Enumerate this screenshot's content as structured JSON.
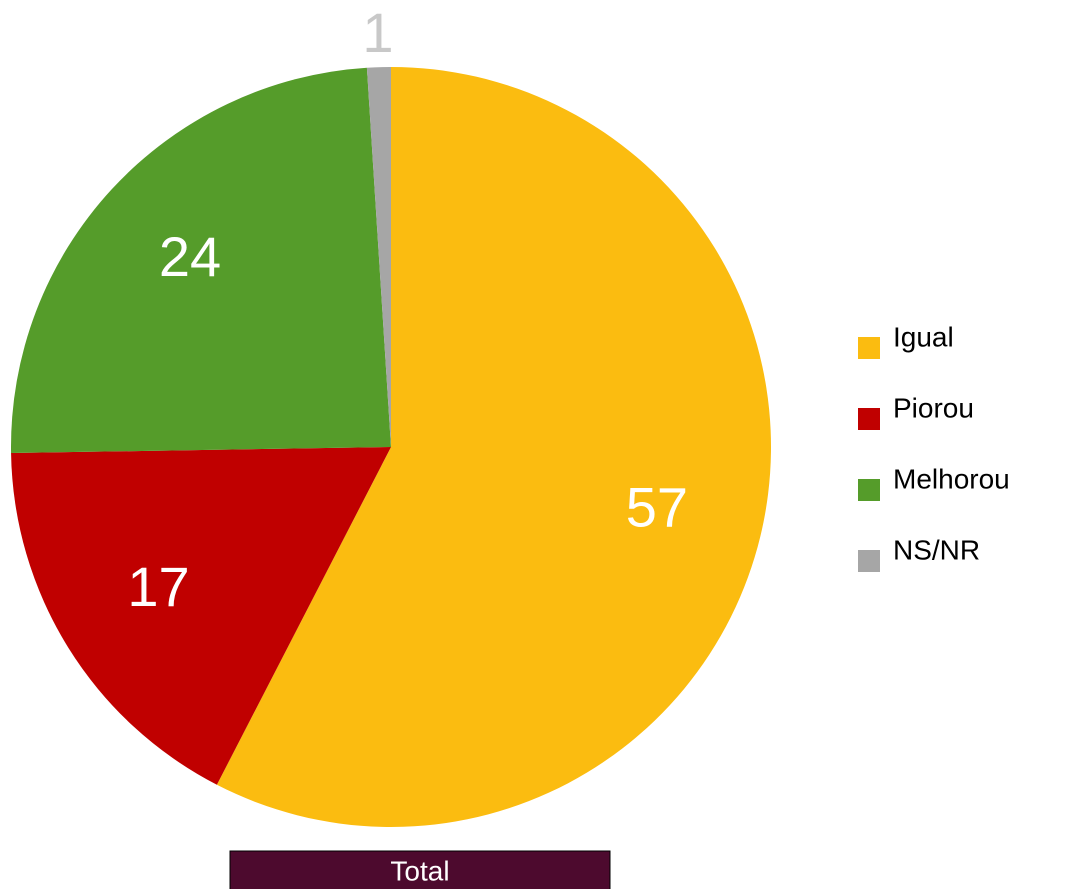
{
  "chart_data": {
    "type": "pie",
    "caption": "Total",
    "categories": [
      "Igual",
      "Piorou",
      "Melhorou",
      "NS/NR"
    ],
    "values": [
      57,
      17,
      24,
      1
    ],
    "colors": [
      "#fbbc10",
      "#c00000",
      "#559c2a",
      "#a6a6a6"
    ],
    "legend": "right"
  }
}
